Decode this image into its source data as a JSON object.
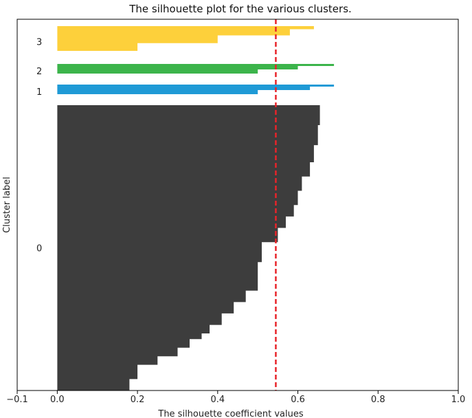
{
  "chart_data": {
    "type": "silhouette",
    "title": "The silhouette plot for the various clusters.",
    "xlabel": "The silhouette coefficient values",
    "ylabel": "Cluster label",
    "xlim": [
      -0.1,
      1.0
    ],
    "xticks": [
      {
        "value": -0.1,
        "label": "−0.1"
      },
      {
        "value": 0.0,
        "label": "0.0"
      },
      {
        "value": 0.2,
        "label": "0.2"
      },
      {
        "value": 0.4,
        "label": "0.4"
      },
      {
        "value": 0.6,
        "label": "0.6"
      },
      {
        "value": 0.8,
        "label": "0.8"
      },
      {
        "value": 1.0,
        "label": "1.0"
      }
    ],
    "average_silhouette": 0.545,
    "average_line_color": "#e8242a",
    "ylim": [
      0,
      540
    ],
    "clusters": [
      {
        "label": "0",
        "color": "#3d3d3d",
        "y_start": 0,
        "y_end": 415,
        "profile": [
          [
            0.0,
            0.18
          ],
          [
            0.03,
            0.18
          ],
          [
            0.04,
            0.2
          ],
          [
            0.09,
            0.25
          ],
          [
            0.12,
            0.3
          ],
          [
            0.15,
            0.33
          ],
          [
            0.18,
            0.36
          ],
          [
            0.2,
            0.38
          ],
          [
            0.23,
            0.41
          ],
          [
            0.27,
            0.44
          ],
          [
            0.31,
            0.47
          ],
          [
            0.35,
            0.5
          ],
          [
            0.4,
            0.5
          ],
          [
            0.45,
            0.51
          ],
          [
            0.49,
            0.51
          ],
          [
            0.52,
            0.55
          ],
          [
            0.57,
            0.57
          ],
          [
            0.61,
            0.59
          ],
          [
            0.65,
            0.6
          ],
          [
            0.7,
            0.61
          ],
          [
            0.75,
            0.63
          ],
          [
            0.8,
            0.64
          ],
          [
            0.86,
            0.65
          ],
          [
            0.93,
            0.655
          ],
          [
            1.0,
            0.655
          ]
        ]
      },
      {
        "label": "1",
        "color": "#1f9ad6",
        "y_start": 425,
        "y_end": 445,
        "profile": [
          [
            0.0,
            0.0
          ],
          [
            0.3,
            0.5
          ],
          [
            0.6,
            0.63
          ],
          [
            0.85,
            0.69
          ],
          [
            1.0,
            0.71
          ]
        ]
      },
      {
        "label": "2",
        "color": "#3cb44b",
        "y_start": 455,
        "y_end": 475,
        "profile": [
          [
            0.0,
            0.0
          ],
          [
            0.3,
            0.5
          ],
          [
            0.6,
            0.6
          ],
          [
            0.85,
            0.69
          ],
          [
            1.0,
            0.715
          ]
        ]
      },
      {
        "label": "3",
        "color": "#fdd03b",
        "y_start": 485,
        "y_end": 530,
        "profile": [
          [
            0.0,
            0.0
          ],
          [
            0.2,
            0.2
          ],
          [
            0.45,
            0.4
          ],
          [
            0.7,
            0.58
          ],
          [
            0.9,
            0.64
          ],
          [
            1.0,
            0.655
          ]
        ]
      }
    ]
  }
}
